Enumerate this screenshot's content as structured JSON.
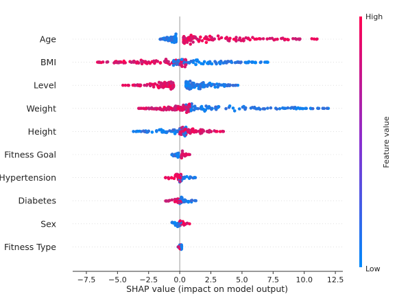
{
  "chart_data": {
    "type": "scatter",
    "subtype": "shap-beeswarm-summary",
    "xlabel": "SHAP value (impact on model output)",
    "xlim": [
      -8.6,
      13.1
    ],
    "x_ticks": [
      -7.5,
      -5.0,
      -2.5,
      0.0,
      2.5,
      5.0,
      7.5,
      10.0,
      12.5
    ],
    "x_tick_labels": [
      "−7.5",
      "−5.0",
      "−2.5",
      "0.0",
      "2.5",
      "5.0",
      "7.5",
      "10.0",
      "12.5"
    ],
    "reference_line_x": 0,
    "grid": false,
    "colorbar": {
      "title": "Feature value",
      "high_label": "High",
      "low_label": "Low",
      "low_color": "#008afb",
      "high_color": "#ff0051",
      "placement": "right"
    },
    "features": [
      {
        "name": "Age",
        "min": -1.6,
        "max": 12.0,
        "low_range": [
          -1.6,
          -0.3
        ],
        "high_range": [
          0.3,
          12.0
        ]
      },
      {
        "name": "BMI",
        "min": -7.2,
        "max": 7.2,
        "low_range": [
          -0.5,
          7.2
        ],
        "high_range": [
          -7.2,
          0.5
        ]
      },
      {
        "name": "Level",
        "min": -4.6,
        "max": 4.7,
        "low_range": [
          0.5,
          4.7
        ],
        "high_range": [
          -4.6,
          -0.5
        ]
      },
      {
        "name": "Weight",
        "min": -3.3,
        "max": 12.0,
        "low_range": [
          0.5,
          12.0
        ],
        "high_range": [
          -3.3,
          0.8
        ]
      },
      {
        "name": "Height",
        "min": -3.8,
        "max": 3.6,
        "low_range": [
          -3.8,
          0.5
        ],
        "high_range": [
          0.0,
          3.6
        ]
      },
      {
        "name": "Fitness Goal",
        "min": -0.7,
        "max": 0.8,
        "low_range": [
          -0.7,
          -0.1
        ],
        "high_range": [
          0.1,
          0.8
        ]
      },
      {
        "name": "Hypertension",
        "min": -1.3,
        "max": 1.3,
        "low_range": [
          0.0,
          1.3
        ],
        "high_range": [
          -1.3,
          0.1
        ]
      },
      {
        "name": "Diabetes",
        "min": -1.3,
        "max": 1.3,
        "low_range": [
          0.0,
          1.3
        ],
        "high_range": [
          -1.3,
          0.1
        ]
      },
      {
        "name": "Sex",
        "min": -1.1,
        "max": 0.8,
        "low_range": [
          -1.1,
          0.1
        ],
        "high_range": [
          0.0,
          0.8
        ]
      },
      {
        "name": "Fitness Type",
        "min": -0.15,
        "max": 0.15,
        "low_range": [
          -0.15,
          0.15
        ],
        "high_range": [
          -0.1,
          0.1
        ]
      }
    ]
  }
}
